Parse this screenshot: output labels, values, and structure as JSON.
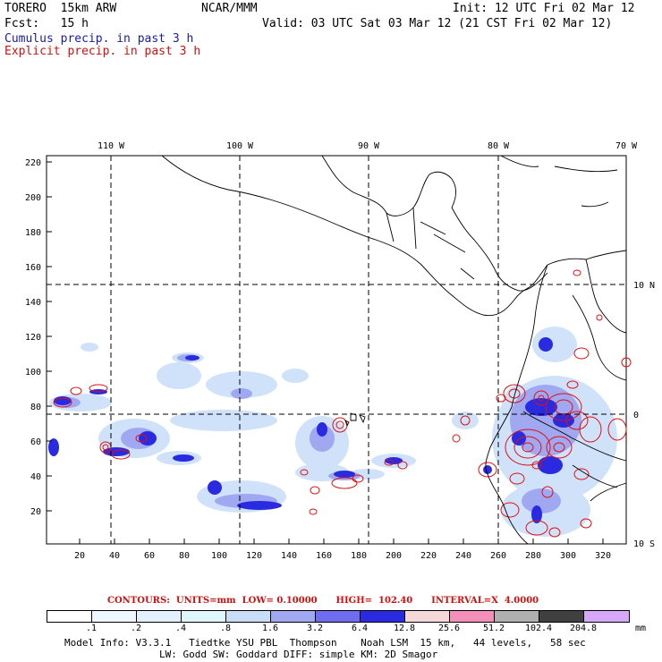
{
  "header": {
    "model": "TORERO  15km ARW",
    "center": "NCAR/MMM",
    "init": "Init: 12 UTC Fri 02 Mar 12",
    "fcst": "Fcst:   15 h",
    "valid": "Valid: 03 UTC Sat 03 Mar 12 (21 CST Fri 02 Mar 12)",
    "field1": "Cumulus precip. in past 3 h",
    "field2": "Explicit precip. in past 3 h"
  },
  "map": {
    "lon_labels": [
      "110 W",
      "100 W",
      "90 W",
      "80 W",
      "70 W"
    ],
    "lat_labels": [
      "10 N",
      "0",
      "10 S"
    ],
    "y_ticks": [
      "220",
      "200",
      "180",
      "160",
      "140",
      "120",
      "100",
      "80",
      "60",
      "40",
      "20"
    ],
    "x_ticks": [
      "20",
      "40",
      "60",
      "80",
      "100",
      "120",
      "140",
      "160",
      "180",
      "200",
      "220",
      "240",
      "260",
      "280",
      "300",
      "320"
    ]
  },
  "contours": {
    "text": "CONTOURS:  UNITS=mm  LOW= 0.10000      HIGH=  102.40      INTERVAL=X  4.0000"
  },
  "colorbar": {
    "colors": [
      "#ffffff",
      "#eef6ff",
      "#e3f0ff",
      "#dff7fb",
      "#c8def8",
      "#a0a8f2",
      "#6f6cf0",
      "#2a2ae0",
      "#f7d8d8",
      "#f38fb9",
      "#b0b0b0",
      "#404040",
      "#d8a8f8"
    ],
    "labels": [
      ".1",
      ".2",
      ".4",
      ".8",
      "1.6",
      "3.2",
      "6.4",
      "12.8",
      "25.6",
      "51.2",
      "102.4",
      "204.8"
    ],
    "unit": "mm"
  },
  "footer": {
    "line1": "Model Info: V3.3.1   Tiedtke YSU PBL  Thompson    Noah LSM  15 km,   44 levels,   58 sec",
    "line2": "                LW: Godd SW: Goddard DIFF: simple KM: 2D Smagor"
  }
}
